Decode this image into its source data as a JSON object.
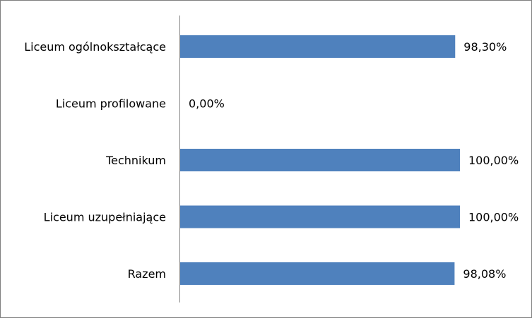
{
  "chart_data": {
    "type": "bar",
    "orientation": "horizontal",
    "categories": [
      "Liceum ogólnokształcące",
      "Liceum profilowane",
      "Technikum",
      "Liceum uzupełniające",
      "Razem"
    ],
    "values": [
      98.3,
      0.0,
      100.0,
      100.0,
      98.08
    ],
    "data_labels": [
      "98,30%",
      "0,00%",
      "100,00%",
      "100,00%",
      "98,08%"
    ],
    "title": "",
    "xlabel": "",
    "ylabel": "",
    "xlim": [
      0,
      100
    ],
    "grid": false,
    "legend": "none",
    "bar_color": "#4f81bd",
    "axis_color": "#868686"
  }
}
